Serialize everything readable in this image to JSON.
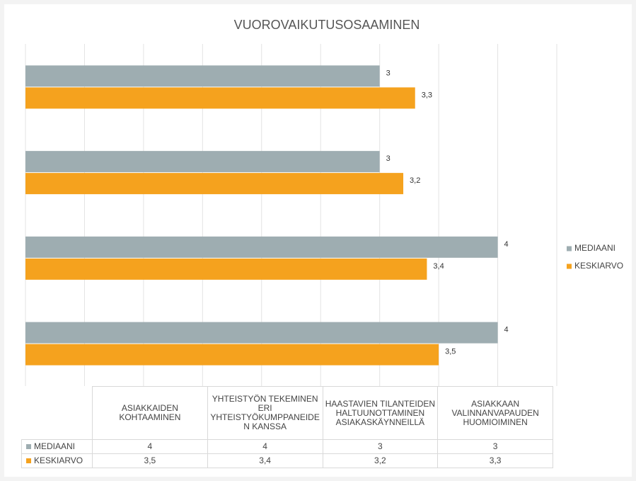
{
  "chart_data": {
    "type": "bar",
    "orientation": "horizontal",
    "title": "VUOROVAIKUTUSOSAAMINEN",
    "categories": [
      "ASIAKKAIDEN KOHTAAMINEN",
      "YHTEISTYÖN TEKEMINEN ERI YHTEISTYÖKUMPPANEIDEN KANSSA",
      "HAASTAVIEN TILANTEIDEN HALTUUNOTTAMINEN ASIAKASKÄYNNEILLÄ",
      "ASIAKKAAN VALINNANVAPAUDEN HUOMIOIMINEN"
    ],
    "series": [
      {
        "name": "MEDIAANI",
        "color": "#9eadb1",
        "values": [
          4,
          4,
          3,
          3
        ],
        "value_labels": [
          "4",
          "4",
          "3",
          "3"
        ]
      },
      {
        "name": "KESKIARVO",
        "color": "#f5a21e",
        "values": [
          3.5,
          3.4,
          3.2,
          3.3
        ],
        "value_labels": [
          "3,5",
          "3,4",
          "3,2",
          "3,3"
        ]
      }
    ],
    "xlim": [
      0,
      4.5
    ],
    "xticks": [
      0,
      0.5,
      1,
      1.5,
      2,
      2.5,
      3,
      3.5,
      4,
      4.5
    ],
    "grid": true,
    "legend": "right",
    "data_table": true
  }
}
